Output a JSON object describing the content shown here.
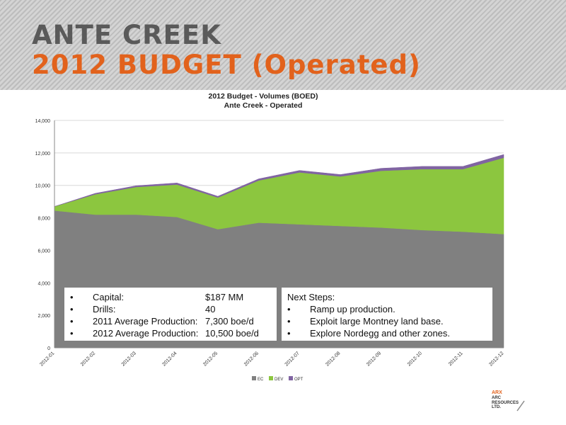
{
  "slide": {
    "title_line1": "ANTE CREEK",
    "title_line2": "2012 BUDGET (Operated)",
    "title_line1_color": "#5a5a5a",
    "title_line2_color": "#e2621c"
  },
  "chart_data": {
    "type": "area",
    "stacked": true,
    "title": "2012 Budget - Volumes (BOED)",
    "subtitle": "Ante Creek - Operated",
    "x": [
      "2012-01",
      "2012-02",
      "2012-03",
      "2012-04",
      "2012-05",
      "2012-06",
      "2012-07",
      "2012-08",
      "2012-09",
      "2012-10",
      "2012-11",
      "2012-12"
    ],
    "series": [
      {
        "name": "EC",
        "color": "#808080",
        "values": [
          8450,
          8200,
          8200,
          8050,
          7300,
          7700,
          7600,
          7500,
          7400,
          7250,
          7150,
          7000
        ]
      },
      {
        "name": "DEV",
        "color": "#8cc63f",
        "values": [
          250,
          1250,
          1700,
          2000,
          1950,
          2600,
          3200,
          3050,
          3500,
          3750,
          3850,
          4700
        ]
      },
      {
        "name": "OPT",
        "color": "#8064a2",
        "values": [
          0,
          60,
          80,
          100,
          80,
          100,
          120,
          120,
          150,
          170,
          170,
          200
        ]
      }
    ],
    "ylim": [
      0,
      14000
    ],
    "yticks": [
      0,
      2000,
      4000,
      6000,
      8000,
      10000,
      12000,
      14000
    ],
    "ytick_labels": [
      "0",
      "2,000",
      "4,000",
      "6,000",
      "8,000",
      "10,000",
      "12,000",
      "14,000"
    ],
    "legend_position": "bottom",
    "grid": true
  },
  "box_left": {
    "items": [
      {
        "bullet": "•",
        "label": "Capital:",
        "value": "$187 MM"
      },
      {
        "bullet": "•",
        "label": "Drills:",
        "value": "40"
      },
      {
        "bullet": "•",
        "label": "2011 Average Production:",
        "value": "7,300 boe/d"
      },
      {
        "bullet": "•",
        "label": "2012 Average Production:",
        "value": "10,500 boe/d"
      }
    ]
  },
  "box_right": {
    "heading": "Next Steps:",
    "items": [
      {
        "bullet": "•",
        "text": "Ramp up production."
      },
      {
        "bullet": "•",
        "text": "Exploit large Montney land base."
      },
      {
        "bullet": "•",
        "text": "Explore Nordegg and other zones."
      }
    ]
  },
  "logo": {
    "line1": "ARX",
    "line2": "ARC",
    "line3": "RESOURCES",
    "line4": "LTD.",
    "color": "#e2621c"
  }
}
